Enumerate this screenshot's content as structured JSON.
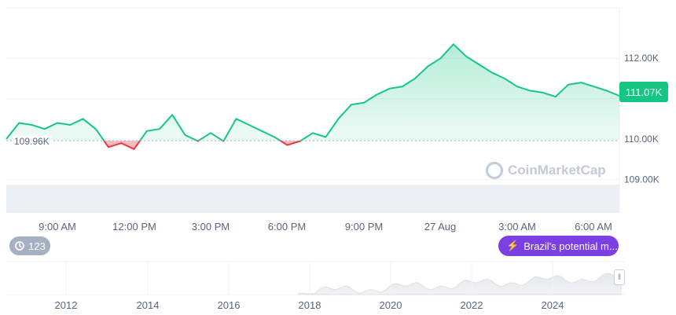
{
  "chart_data": {
    "type": "area",
    "y_axis": {
      "ticks": [
        "112.00K",
        "111.00K",
        "110.00K",
        "109.00K"
      ],
      "tick_values": [
        112000,
        111000,
        110000,
        109000
      ],
      "range": [
        108950,
        113250
      ]
    },
    "x_axis": {
      "ticks": [
        "9:00 AM",
        "12:00 PM",
        "3:00 PM",
        "6:00 PM",
        "9:00 PM",
        "27 Aug",
        "3:00 AM",
        "6:00 AM"
      ]
    },
    "open_price": 109960,
    "open_label": "109.96K",
    "current_price": 111070,
    "current_label": "111.07K",
    "series": [
      {
        "x": [
          0,
          0.5,
          1,
          1.5,
          2,
          2.5,
          3,
          3.5,
          4,
          4.5,
          5,
          5.5,
          6,
          6.5,
          7,
          7.5,
          8,
          8.5,
          9,
          9.5,
          10,
          10.5,
          11,
          11.5,
          12,
          12.5,
          13,
          13.5,
          14,
          14.5,
          15,
          15.5,
          16,
          16.5,
          17,
          17.5,
          18,
          18.5,
          19,
          19.5,
          20,
          20.5,
          21,
          21.5,
          22,
          22.5,
          23,
          23.5,
          24
        ],
        "values": [
          110000,
          110400,
          110350,
          110250,
          110400,
          110350,
          110500,
          110250,
          109800,
          109900,
          109750,
          110200,
          110250,
          110600,
          110100,
          109950,
          110150,
          109950,
          110500,
          110350,
          110200,
          110050,
          109850,
          109950,
          110150,
          110050,
          110500,
          110850,
          110900,
          111100,
          111250,
          111300,
          111500,
          111800,
          112000,
          112350,
          112050,
          111850,
          111650,
          111500,
          111300,
          111200,
          111150,
          111050,
          111350,
          111400,
          111300,
          111200,
          111070
        ],
        "color_up": "#16c784",
        "color_down": "#ea3943"
      }
    ],
    "navigator": {
      "ticks": [
        "2012",
        "2014",
        "2016",
        "2018",
        "2020",
        "2022",
        "2024"
      ]
    }
  },
  "events_badge": {
    "count": "123"
  },
  "news_badge": {
    "label": "Brazil's potential m..."
  },
  "watermark": "CoinMarketCap",
  "colors": {
    "up": "#16c784",
    "down": "#ea3943",
    "news": "#7b3fe4",
    "events": "#a6b0c3"
  }
}
